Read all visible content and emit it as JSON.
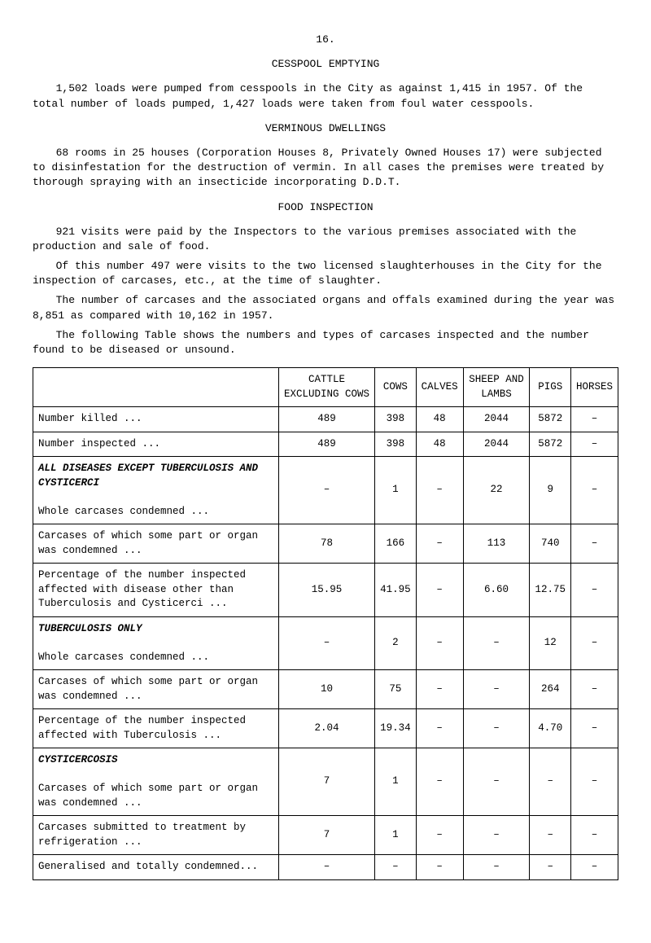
{
  "page_number": "16.",
  "title1": "CESSPOOL EMPTYING",
  "para1": "1,502 loads were pumped from cesspools in the City as against 1,415 in 1957. Of the total number of loads pumped, 1,427 loads were taken from foul water cesspools.",
  "title2": "VERMINOUS DWELLINGS",
  "para2": "68 rooms in 25 houses (Corporation Houses 8, Privately Owned Houses 17) were subjected to disinfestation for the destruction of vermin. In all cases the premises were treated by thorough spraying with an insecticide incorporating D.D.T.",
  "title3": "FOOD INSPECTION",
  "para3a": "921 visits were paid by the Inspectors to the various premises associated with the production and sale of food.",
  "para3b": "Of this number 497 were visits to the two licensed slaughterhouses in the City for the inspection of carcases, etc., at the time of slaughter.",
  "para3c": "The number of carcases and the associated organs and offals examined during the year was 8,851 as compared with 10,162 in 1957.",
  "para3d": "The following Table shows the numbers and types of carcases inspected and the number found to be diseased or unsound.",
  "cols": {
    "c0": "",
    "c1": "CATTLE EXCLUDING COWS",
    "c2": "COWS",
    "c3": "CALVES",
    "c4": "SHEEP AND LAMBS",
    "c5": "PIGS",
    "c6": "HORSES"
  },
  "rows": [
    {
      "label": "Number killed   ...",
      "v": [
        "489",
        "398",
        "48",
        "2044",
        "5872",
        "–"
      ]
    },
    {
      "label": "Number inspected ...",
      "v": [
        "489",
        "398",
        "48",
        "2044",
        "5872",
        "–"
      ]
    },
    {
      "label": "ALL DISEASES EXCEPT TUBERCULOSIS AND CYSTICERCI",
      "section": true,
      "condLabel": "Whole carcases condemned   ...",
      "v": [
        "–",
        "1",
        "–",
        "22",
        "9",
        "–"
      ]
    },
    {
      "label": "Carcases of which some part or organ was condemned   ...",
      "v": [
        "78",
        "166",
        "–",
        "113",
        "740",
        "–"
      ]
    },
    {
      "label": "Percentage of the number inspected affected with disease other than Tuberculosis and Cysticerci   ...",
      "v": [
        "15.95",
        "41.95",
        "–",
        "6.60",
        "12.75",
        "–"
      ]
    },
    {
      "label": "TUBERCULOSIS ONLY",
      "section": true,
      "condLabel": "Whole carcases condemned   ...",
      "v": [
        "–",
        "2",
        "–",
        "–",
        "12",
        "–"
      ]
    },
    {
      "label": "Carcases of which some part or organ was condemned   ...",
      "v": [
        "10",
        "75",
        "–",
        "–",
        "264",
        "–"
      ]
    },
    {
      "label": "Percentage of the number inspected affected with Tuberculosis   ...",
      "v": [
        "2.04",
        "19.34",
        "–",
        "–",
        "4.70",
        "–"
      ]
    },
    {
      "label": "CYSTICERCOSIS",
      "section": true,
      "condLabel": "Carcases of which some part or organ was condemned   ...",
      "v": [
        "7",
        "1",
        "–",
        "–",
        "–",
        "–"
      ]
    },
    {
      "label": "Carcases submitted to treatment by refrigeration   ...",
      "v": [
        "7",
        "1",
        "–",
        "–",
        "–",
        "–"
      ]
    },
    {
      "label": "Generalised and totally condemned...",
      "v": [
        "–",
        "–",
        "–",
        "–",
        "–",
        "–"
      ]
    }
  ]
}
